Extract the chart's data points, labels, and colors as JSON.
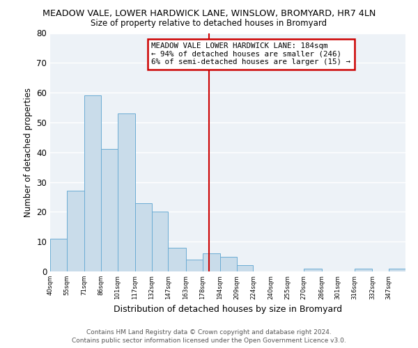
{
  "title": "MEADOW VALE, LOWER HARDWICK LANE, WINSLOW, BROMYARD, HR7 4LN",
  "subtitle": "Size of property relative to detached houses in Bromyard",
  "xlabel": "Distribution of detached houses by size in Bromyard",
  "ylabel": "Number of detached properties",
  "bar_edges": [
    40,
    55,
    71,
    86,
    101,
    117,
    132,
    147,
    163,
    178,
    194,
    209,
    224,
    240,
    255,
    270,
    286,
    301,
    316,
    332,
    347,
    362
  ],
  "bar_heights": [
    11,
    27,
    59,
    41,
    53,
    23,
    20,
    8,
    4,
    6,
    5,
    2,
    0,
    0,
    0,
    1,
    0,
    0,
    1,
    0,
    1
  ],
  "bar_color": "#c9dcea",
  "bar_edge_color": "#6bacd4",
  "property_line_x": 184,
  "property_line_color": "#cc0000",
  "annotation_title": "MEADOW VALE LOWER HARDWICK LANE: 184sqm",
  "annotation_line1": "← 94% of detached houses are smaller (246)",
  "annotation_line2": "6% of semi-detached houses are larger (15) →",
  "annotation_box_edgecolor": "#cc0000",
  "ylim": [
    0,
    80
  ],
  "yticks": [
    0,
    10,
    20,
    30,
    40,
    50,
    60,
    70,
    80
  ],
  "tick_labels": [
    "40sqm",
    "55sqm",
    "71sqm",
    "86sqm",
    "101sqm",
    "117sqm",
    "132sqm",
    "147sqm",
    "163sqm",
    "178sqm",
    "194sqm",
    "209sqm",
    "224sqm",
    "240sqm",
    "255sqm",
    "270sqm",
    "286sqm",
    "301sqm",
    "316sqm",
    "332sqm",
    "347sqm"
  ],
  "footer_line1": "Contains HM Land Registry data © Crown copyright and database right 2024.",
  "footer_line2": "Contains public sector information licensed under the Open Government Licence v3.0.",
  "bg_color": "#edf2f7",
  "grid_color": "#ffffff"
}
